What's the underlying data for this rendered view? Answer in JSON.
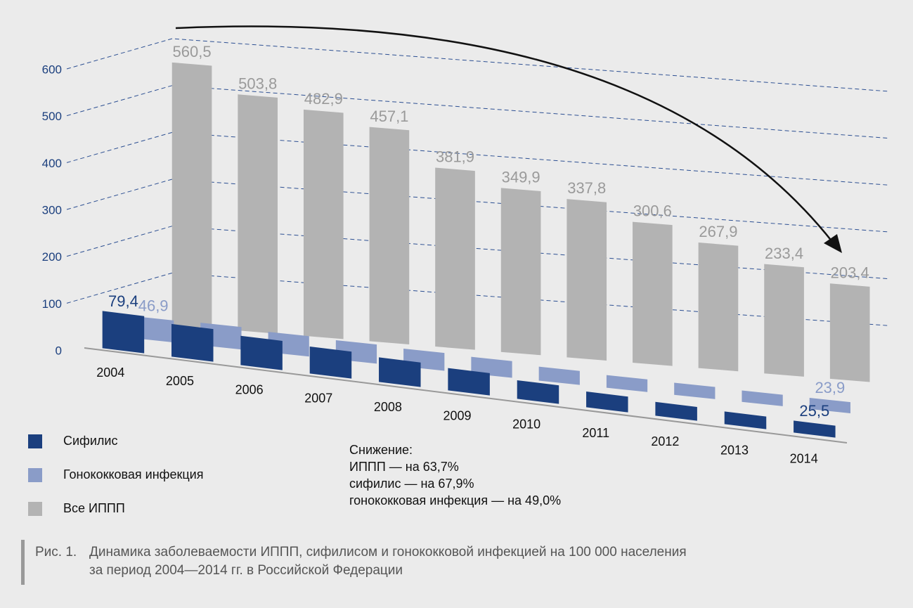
{
  "chart_data": {
    "type": "bar3d",
    "categories": [
      "2004",
      "2005",
      "2006",
      "2007",
      "2008",
      "2009",
      "2010",
      "2011",
      "2012",
      "2013",
      "2014"
    ],
    "series": [
      {
        "name": "Сифилис",
        "color": "#1b3f7e",
        "values": [
          79.4,
          69.7,
          62.5,
          57.6,
          52.4,
          47.6,
          39.6,
          33.5,
          29.5,
          27.0,
          25.5
        ],
        "value_labels": [
          "79,4",
          null,
          null,
          null,
          null,
          null,
          null,
          null,
          null,
          null,
          "25,5"
        ]
      },
      {
        "name": "Гонококковая инфекция",
        "color": "#8a9cc8",
        "values": [
          46.9,
          48.0,
          43.5,
          40.9,
          38.0,
          35.7,
          29.9,
          27.0,
          25.9,
          24.5,
          23.9
        ],
        "value_labels": [
          "46,9",
          null,
          null,
          null,
          null,
          null,
          null,
          null,
          null,
          null,
          "23,9"
        ]
      },
      {
        "name": "Все ИППП",
        "color": "#b3b3b3",
        "values": [
          560.5,
          503.8,
          482.9,
          457.1,
          381.9,
          349.9,
          337.8,
          300.6,
          267.9,
          233.4,
          203.4
        ],
        "value_labels": [
          "560,5",
          "503,8",
          "482,9",
          "457,1",
          "381,9",
          "349,9",
          "337,8",
          "300,6",
          "267,9",
          "233,4",
          "203,4"
        ]
      }
    ],
    "ylim": [
      0,
      600
    ],
    "yticks": [
      0,
      100,
      200,
      300,
      400,
      500,
      600
    ],
    "grid": true,
    "annotation": [
      "Снижение:",
      "ИППП — на 63,7%",
      "сифилис — на 67,9%",
      "гонококковая инфекция — на 49,0%"
    ],
    "caption": {
      "label": "Рис. 1.",
      "lines": [
        "Динамика заболеваемости ИППП, сифилисом и гонококковой инфекцией на 100 000 населения",
        "за период 2004—2014 гг. в Российской Федерации"
      ]
    }
  }
}
